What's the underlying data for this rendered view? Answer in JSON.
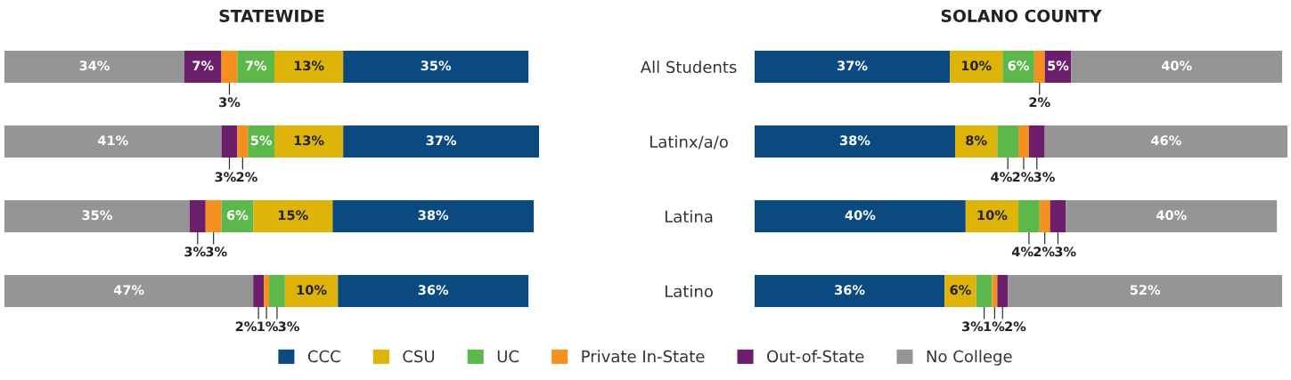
{
  "chart_data": [
    {
      "type": "bar",
      "orientation": "horizontal",
      "stacked": true,
      "title": "STATEWIDE",
      "categories": [
        "All Students",
        "Latinx/a/o",
        "Latina",
        "Latino"
      ],
      "tick_labels": "y",
      "series": [
        {
          "color": "#959595",
          "values": [
            34,
            41,
            35,
            47
          ],
          "value_labels": [
            "34%",
            "41%",
            "35%",
            "47%"
          ]
        },
        {
          "color": "#6b1f6b",
          "values": [
            7,
            3,
            3,
            2
          ],
          "value_labels": [
            "7%",
            "3%",
            "3%",
            "2%"
          ]
        },
        {
          "color": "#f5901e",
          "values": [
            3,
            2,
            3,
            1
          ],
          "value_labels": [
            "3%",
            "2%",
            "3%",
            "1%"
          ]
        },
        {
          "color": "#5cb84a",
          "values": [
            7,
            5,
            6,
            3
          ],
          "value_labels": [
            "7%",
            "5%",
            "6%",
            "3%"
          ]
        },
        {
          "color": "#deb40a",
          "values": [
            13,
            13,
            15,
            10
          ],
          "value_labels": [
            "13%",
            "13%",
            "15%",
            "10%"
          ]
        },
        {
          "color": "#0b4a80",
          "values": [
            35,
            37,
            38,
            36
          ],
          "value_labels": [
            "35%",
            "37%",
            "38%",
            "36%"
          ]
        }
      ]
    },
    {
      "type": "bar",
      "orientation": "horizontal",
      "stacked": true,
      "title": "SOLANO COUNTY",
      "categories": [
        null,
        null,
        null,
        null
      ],
      "tick_labels": false,
      "legend": "bottom",
      "series": [
        {
          "name": "CCC",
          "color": "#0b4a80",
          "values": [
            37,
            38,
            40,
            36
          ],
          "value_labels": [
            "37%",
            "38%",
            "40%",
            "36%"
          ]
        },
        {
          "name": "CSU",
          "color": "#deb40a",
          "values": [
            10,
            8,
            10,
            6
          ],
          "value_labels": [
            "10%",
            "8%",
            "10%",
            "6%"
          ]
        },
        {
          "name": "UC",
          "color": "#5cb84a",
          "values": [
            6,
            4,
            4,
            3
          ],
          "value_labels": [
            "6%",
            "4%",
            "4%",
            "3%"
          ]
        },
        {
          "name": "Private In-State",
          "color": "#f5901e",
          "values": [
            2,
            2,
            2,
            1
          ],
          "value_labels": [
            "2%",
            "2%",
            "2%",
            "1%"
          ]
        },
        {
          "name": "Out-of-State",
          "color": "#6b1f6b",
          "values": [
            5,
            3,
            3,
            2
          ],
          "value_labels": [
            "5%",
            "3%",
            "3%",
            "2%"
          ]
        },
        {
          "name": "No College",
          "color": "#959595",
          "values": [
            40,
            46,
            40,
            52
          ],
          "value_labels": [
            "40%",
            "46%",
            "40%",
            "52%"
          ]
        }
      ]
    }
  ]
}
